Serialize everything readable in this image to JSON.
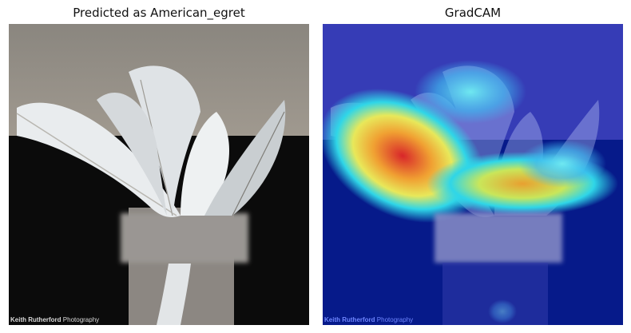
{
  "panels": [
    {
      "title": "Predicted as American_egret",
      "kind": "original-photo",
      "watermark": {
        "bold": "Keith Rutherford",
        "rest": " Photography"
      }
    },
    {
      "title": "GradCAM",
      "kind": "gradcam-heatmap-overlay",
      "watermark": {
        "bold": "Keith Rutherford",
        "rest": " Photography"
      }
    }
  ],
  "colors": {
    "wall": "#8f8a83",
    "background_dark": "#0b0b0b",
    "feather": "#e9ecee",
    "heat_low": "#0b1f9e",
    "heat_mid": "#23d7f0",
    "heat_high": "#e8322a",
    "watermark_left": "#d9d9d9",
    "watermark_right": "#6f86ff"
  }
}
